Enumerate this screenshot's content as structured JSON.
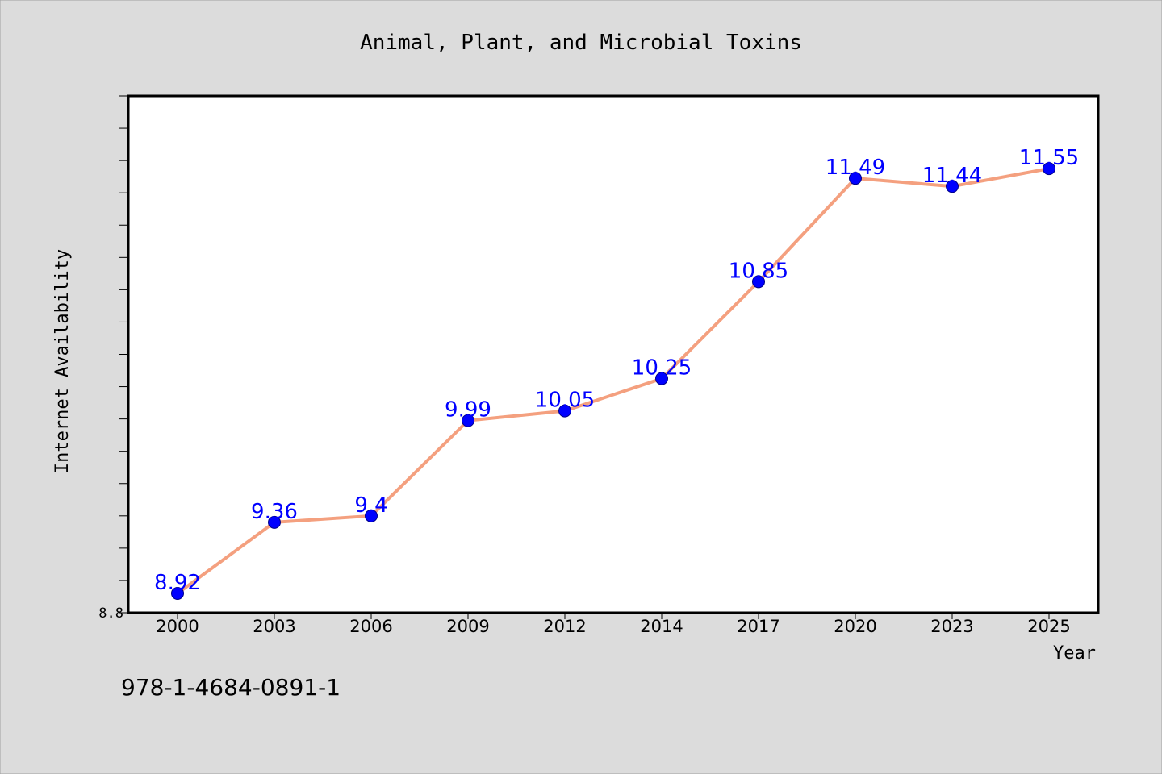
{
  "chart_data": {
    "type": "line",
    "title": "Animal, Plant, and Microbial Toxins",
    "xlabel": "Year",
    "ylabel": "Internet Availability",
    "categories": [
      "2000",
      "2003",
      "2006",
      "2009",
      "2012",
      "2014",
      "2017",
      "2020",
      "2023",
      "2025"
    ],
    "series": [
      {
        "values": [
          8.92,
          9.36,
          9.4,
          9.99,
          10.05,
          10.25,
          10.85,
          11.49,
          11.44,
          11.55
        ],
        "labels": [
          "8.92",
          "9.36",
          "9.4",
          "9.99",
          "10.05",
          "10.25",
          "10.85",
          "11.49",
          "11.44",
          "11.55"
        ]
      }
    ],
    "ylim": [
      8.8,
      12.0
    ],
    "y_tick_labels": [
      "8.8"
    ],
    "grid": false,
    "colors": {
      "line": "#f4a07f",
      "marker": "#0000ff",
      "data_label": "#0000ff",
      "plot_background": "#ffffff",
      "figure_background": "#dcdcdc"
    }
  },
  "footer_text": "978-1-4684-0891-1"
}
